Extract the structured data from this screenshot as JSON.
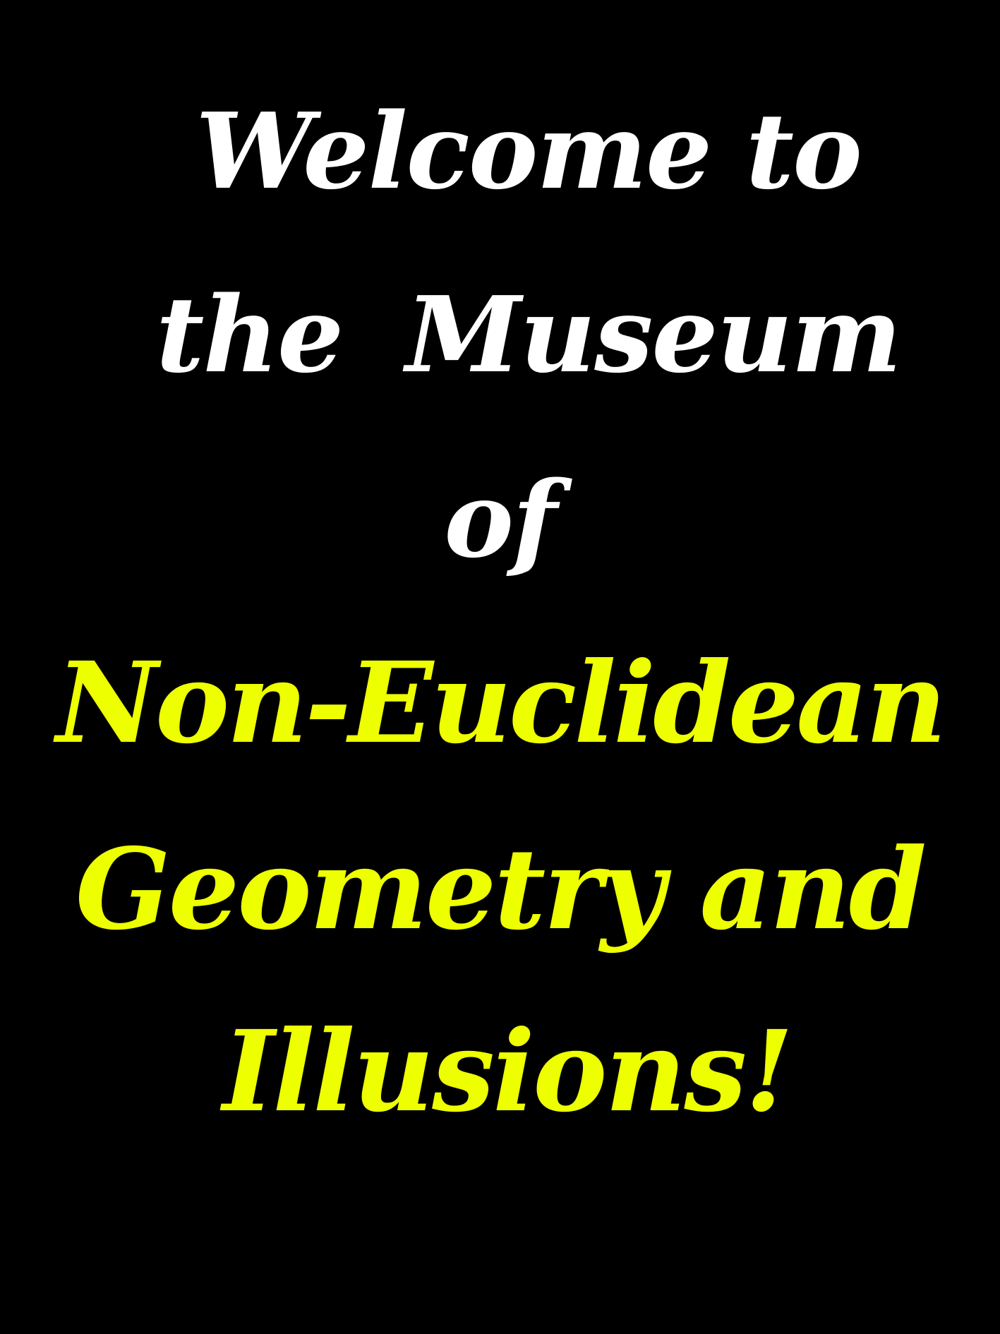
{
  "colors": {
    "background": "#000000",
    "primary_text": "#ffffff",
    "accent_text": "#eeff00"
  },
  "sign": {
    "line1": "Welcome to",
    "line2": "the  Museum",
    "line3": "of",
    "line4": "Non-Euclidean",
    "line5": "Geometry and",
    "line6": "Illusions!"
  }
}
